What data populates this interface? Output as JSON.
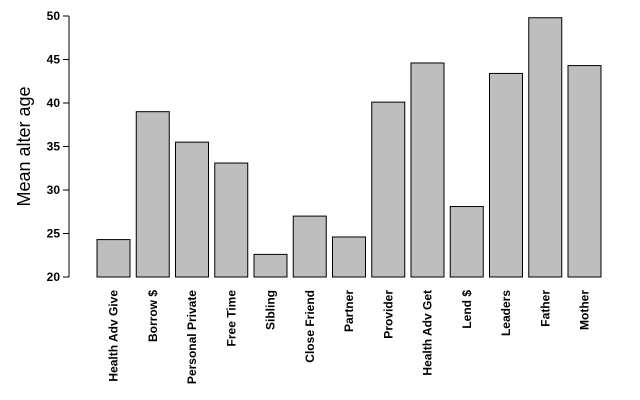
{
  "chart_data": {
    "type": "bar",
    "title": "",
    "xlabel": "",
    "ylabel": "Mean alter age",
    "ylim": [
      20,
      50
    ],
    "yticks": [
      20,
      25,
      30,
      35,
      40,
      45,
      50
    ],
    "bar_color": "#bebebe",
    "bar_edge_color": "#000000",
    "grid": false,
    "categories": [
      "Health Adv Give",
      "Borrow $",
      "Personal Private",
      "Free Time",
      "Sibling",
      "Close Friend",
      "Partner",
      "Provider",
      "Health Adv Get",
      "Lend $",
      "Leaders",
      "Father",
      "Mother"
    ],
    "values": [
      24.3,
      39.0,
      35.5,
      33.1,
      22.6,
      27.0,
      24.6,
      40.1,
      44.6,
      28.1,
      43.4,
      49.8,
      44.3
    ]
  }
}
